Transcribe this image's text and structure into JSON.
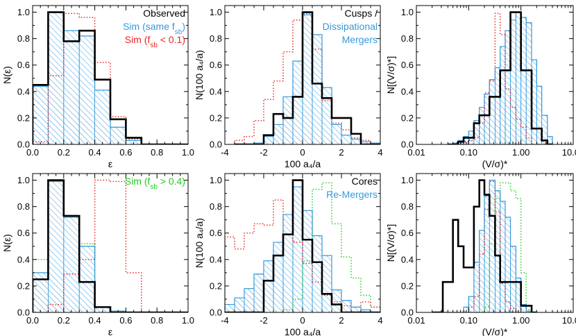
{
  "colors": {
    "observed": "#000000",
    "sim_same": "#3399dd",
    "sim_low": "#ee2222",
    "sim_high": "#22cc22"
  },
  "chart_data": [
    {
      "type": "histogram",
      "row": 0,
      "col": 0,
      "xlabel": "ε",
      "ylabel": "N(ε)",
      "xlim": [
        0.0,
        1.0
      ],
      "ylim": [
        0.0,
        1.05
      ],
      "xscale": "linear",
      "xticks": [
        "0.0",
        "0.2",
        "0.4",
        "0.6",
        "0.8",
        "1.0"
      ],
      "xtick_values": [
        0.0,
        0.2,
        0.4,
        0.6,
        0.8,
        1.0
      ],
      "yticks": [
        "0.0",
        "0.2",
        "0.4",
        "0.6",
        "0.8",
        "1.0"
      ],
      "ytick_values": [
        0.0,
        0.2,
        0.4,
        0.6,
        0.8,
        1.0
      ],
      "bin_edges": [
        0.0,
        0.1,
        0.2,
        0.3,
        0.4,
        0.5,
        0.6,
        0.7,
        0.8,
        0.9,
        1.0
      ],
      "legend": [
        {
          "text": "Observed",
          "color_key": "observed"
        },
        {
          "text": "Sim (same f",
          "sub": "sb",
          "after": ")",
          "color_key": "sim_same"
        },
        {
          "text": "Sim (f",
          "sub": "sb",
          "after": " < 0.1)",
          "color_key": "sim_low"
        }
      ],
      "series": [
        {
          "name": "Observed",
          "style": "solid-black",
          "values": [
            0.45,
            1.0,
            0.78,
            0.86,
            0.49,
            0.19,
            0.05,
            0.0,
            0.0,
            0.0
          ]
        },
        {
          "name": "Sim (same f_sb)",
          "style": "hatched-blue",
          "values": [
            0.44,
            1.0,
            0.86,
            0.82,
            0.41,
            0.13,
            0.03,
            0.0,
            0.0,
            0.0
          ]
        },
        {
          "name": "Sim (f_sb < 0.1)",
          "style": "dotted-red",
          "values": [
            0.02,
            0.52,
            0.99,
            0.96,
            0.62,
            0.21,
            0.04,
            0.0,
            0.0,
            0.0
          ]
        }
      ]
    },
    {
      "type": "histogram",
      "row": 0,
      "col": 1,
      "xlabel": "100 a₄/a",
      "ylabel": "N(100 a₄/a)",
      "xlim": [
        -4,
        4
      ],
      "ylim": [
        0.0,
        1.05
      ],
      "xscale": "linear",
      "xticks": [
        "-4",
        "-2",
        "0",
        "2",
        "4"
      ],
      "xtick_values": [
        -4,
        -2,
        0,
        2,
        4
      ],
      "yticks": [
        "0.0",
        "0.2",
        "0.4",
        "0.6",
        "0.8",
        "1.0"
      ],
      "ytick_values": [
        0.0,
        0.2,
        0.4,
        0.6,
        0.8,
        1.0
      ],
      "bin_edges": [
        -3.5,
        -3.0,
        -2.5,
        -2.0,
        -1.5,
        -1.0,
        -0.5,
        0.0,
        0.5,
        1.0,
        1.5,
        2.0,
        2.5,
        3.0,
        3.5,
        4.0
      ],
      "legend": [
        {
          "text": "Cusps /",
          "color_key": "observed"
        },
        {
          "text": "Dissipational",
          "color_key": "sim_same"
        },
        {
          "text": "Mergers",
          "color_key": "sim_same"
        }
      ],
      "series": [
        {
          "name": "Observed",
          "style": "solid-black",
          "values": [
            0.0,
            0.0,
            0.0,
            0.07,
            0.23,
            0.2,
            0.36,
            1.0,
            0.46,
            0.35,
            0.2,
            0.2,
            0.08,
            0.0,
            0.0
          ]
        },
        {
          "name": "Sim (same f_sb)",
          "style": "hatched-blue",
          "values": [
            0.0,
            0.0,
            0.01,
            0.06,
            0.15,
            0.36,
            0.63,
            0.98,
            0.83,
            0.43,
            0.15,
            0.07,
            0.04,
            0.02,
            0.01
          ]
        },
        {
          "name": "Sim (f_sb < 0.1)",
          "style": "dotted-red",
          "values": [
            0.03,
            0.06,
            0.18,
            0.34,
            0.48,
            0.7,
            0.94,
            0.99,
            0.72,
            0.33,
            0.16,
            0.11,
            0.05,
            0.03,
            0.01
          ]
        }
      ]
    },
    {
      "type": "histogram",
      "row": 0,
      "col": 2,
      "xlabel": "(V/σ)*",
      "ylabel": "N[(V/σ)*]",
      "xlim": [
        0.01,
        10.0
      ],
      "ylim": [
        0.0,
        1.05
      ],
      "xscale": "log",
      "xticks": [
        "0.01",
        "0.10",
        "1.00",
        "10.00"
      ],
      "xtick_values": [
        0.01,
        0.1,
        1.0,
        10.0
      ],
      "yticks": [
        "0.0",
        "0.2",
        "0.4",
        "0.6",
        "0.8",
        "1.0"
      ],
      "ytick_values": [
        0.0,
        0.2,
        0.4,
        0.6,
        0.8,
        1.0
      ],
      "bin_edges": [
        0.04,
        0.05,
        0.063,
        0.08,
        0.1,
        0.126,
        0.16,
        0.2,
        0.25,
        0.32,
        0.4,
        0.5,
        0.63,
        0.8,
        1.0,
        1.26,
        1.6,
        2.0,
        2.5,
        3.2,
        4.0
      ],
      "legend": [],
      "series": [
        {
          "name": "Observed",
          "style": "solid-black",
          "values": [
            0.0,
            0.0,
            0.02,
            0.05,
            0.05,
            0.16,
            0.22,
            0.22,
            0.36,
            0.36,
            0.56,
            0.56,
            1.0,
            1.0,
            0.56,
            0.56,
            0.12,
            0.12,
            0.03,
            0.0
          ]
        },
        {
          "name": "Sim (same f_sb)",
          "style": "hatched-blue",
          "values": [
            0.0,
            0.01,
            0.03,
            0.06,
            0.1,
            0.18,
            0.28,
            0.38,
            0.49,
            0.58,
            0.74,
            0.86,
            0.94,
            1.0,
            0.96,
            0.92,
            0.64,
            0.44,
            0.22,
            0.06
          ]
        },
        {
          "name": "Sim (f_sb < 0.1)",
          "style": "dotted-red",
          "values": [
            0.0,
            0.0,
            0.01,
            0.02,
            0.03,
            0.05,
            0.16,
            0.39,
            0.48,
            0.99,
            0.83,
            0.42,
            0.28,
            0.19,
            0.13,
            0.05,
            0.0,
            0.0,
            0.0,
            0.0
          ]
        }
      ]
    },
    {
      "type": "histogram",
      "row": 1,
      "col": 0,
      "xlabel": "ε",
      "ylabel": "N(ε)",
      "xlim": [
        0.0,
        1.0
      ],
      "ylim": [
        0.0,
        1.05
      ],
      "xscale": "linear",
      "xticks": [
        "0.0",
        "0.2",
        "0.4",
        "0.6",
        "0.8",
        "1.0"
      ],
      "xtick_values": [
        0.0,
        0.2,
        0.4,
        0.6,
        0.8,
        1.0
      ],
      "yticks": [
        "0.0",
        "0.2",
        "0.4",
        "0.6",
        "0.8",
        "1.0"
      ],
      "ytick_values": [
        0.0,
        0.2,
        0.4,
        0.6,
        0.8,
        1.0
      ],
      "bin_edges": [
        0.0,
        0.1,
        0.2,
        0.3,
        0.4,
        0.5,
        0.6,
        0.7,
        0.8,
        0.9,
        1.0
      ],
      "legend": [
        {
          "text": "Sim (f",
          "sub": "sb",
          "after": " > 0.4)",
          "color_key": "sim_high"
        }
      ],
      "series": [
        {
          "name": "Observed",
          "style": "solid-black",
          "values": [
            0.25,
            1.0,
            0.73,
            0.23,
            0.04,
            0.0,
            0.0,
            0.0,
            0.0,
            0.0
          ]
        },
        {
          "name": "Sim (same f_sb)",
          "style": "hatched-blue",
          "values": [
            0.3,
            0.99,
            0.72,
            0.5,
            0.04,
            0.01,
            0.0,
            0.0,
            0.0,
            0.0
          ]
        },
        {
          "name": "Sim (f_sb < 0.1)",
          "style": "dotted-red",
          "values": [
            0.0,
            0.06,
            0.29,
            0.4,
            1.0,
            0.99,
            0.3,
            0.0,
            0.0,
            0.0
          ]
        },
        {
          "name": "Sim (f_sb > 0.4)",
          "style": "dotted-green",
          "values": [
            0.4,
            1.0,
            0.72,
            0.52,
            0.04,
            0.0,
            0.0,
            0.0,
            0.0,
            0.0
          ]
        }
      ]
    },
    {
      "type": "histogram",
      "row": 1,
      "col": 1,
      "xlabel": "100 a₄/a",
      "ylabel": "N(100 a₄/a)",
      "xlim": [
        -4,
        4
      ],
      "ylim": [
        0.0,
        1.05
      ],
      "xscale": "linear",
      "xticks": [
        "-4",
        "-2",
        "0",
        "2",
        "4"
      ],
      "xtick_values": [
        -4,
        -2,
        0,
        2,
        4
      ],
      "yticks": [
        "0.0",
        "0.2",
        "0.4",
        "0.6",
        "0.8",
        "1.0"
      ],
      "ytick_values": [
        0.0,
        0.2,
        0.4,
        0.6,
        0.8,
        1.0
      ],
      "bin_edges": [
        -4.0,
        -3.5,
        -3.0,
        -2.5,
        -2.0,
        -1.5,
        -1.0,
        -0.5,
        0.0,
        0.5,
        1.0,
        1.5,
        2.0,
        2.5,
        3.0,
        3.5,
        4.0
      ],
      "legend": [
        {
          "text": "Cores",
          "color_key": "observed"
        },
        {
          "text": "Re-Mergers",
          "color_key": "sim_same"
        }
      ],
      "series": [
        {
          "name": "Observed",
          "style": "solid-black",
          "values": [
            0.0,
            0.0,
            0.0,
            0.0,
            0.24,
            0.43,
            0.59,
            1.0,
            0.55,
            0.38,
            0.14,
            0.06,
            0.0,
            0.0,
            0.0,
            0.0
          ]
        },
        {
          "name": "Sim (same f_sb)",
          "style": "hatched-blue",
          "values": [
            0.06,
            0.11,
            0.18,
            0.29,
            0.39,
            0.53,
            0.74,
            0.95,
            0.77,
            0.58,
            0.43,
            0.17,
            0.09,
            0.04,
            0.02,
            0.0
          ]
        },
        {
          "name": "Sim (f_sb < 0.1)",
          "style": "dotted-red",
          "values": [
            0.57,
            0.48,
            0.6,
            0.67,
            0.66,
            0.85,
            0.59,
            0.53,
            0.37,
            0.23,
            0.13,
            0.08,
            0.05,
            0.04,
            0.08,
            0.04
          ]
        },
        {
          "name": "Sim (f_sb > 0.4)",
          "style": "dotted-green",
          "values": [
            0.0,
            0.0,
            0.0,
            0.0,
            0.0,
            0.0,
            0.02,
            0.1,
            0.39,
            0.93,
            0.98,
            0.67,
            0.42,
            0.26,
            0.13,
            0.04
          ]
        }
      ]
    },
    {
      "type": "histogram",
      "row": 1,
      "col": 2,
      "xlabel": "(V/σ)*",
      "ylabel": "N[(V/σ)*]",
      "xlim": [
        0.01,
        10.0
      ],
      "ylim": [
        0.0,
        1.05
      ],
      "xscale": "log",
      "xticks": [
        "0.01",
        "0.10",
        "1.00",
        "10.00"
      ],
      "xtick_values": [
        0.01,
        0.1,
        1.0,
        10.0
      ],
      "yticks": [
        "0.0",
        "0.2",
        "0.4",
        "0.6",
        "0.8",
        "1.0"
      ],
      "ytick_values": [
        0.0,
        0.2,
        0.4,
        0.6,
        0.8,
        1.0
      ],
      "bin_edges": [
        0.02,
        0.032,
        0.05,
        0.063,
        0.08,
        0.1,
        0.126,
        0.16,
        0.2,
        0.25,
        0.32,
        0.4,
        0.5,
        0.63,
        0.8,
        1.0,
        1.26,
        1.6,
        2.0
      ],
      "legend": [],
      "series": [
        {
          "name": "Observed",
          "style": "solid-black",
          "values": [
            0.0,
            0.23,
            0.7,
            0.5,
            0.34,
            0.34,
            0.8,
            1.0,
            0.89,
            0.73,
            0.43,
            0.23,
            0.23,
            0.23,
            0.23,
            0.05,
            0.05,
            0.0
          ]
        },
        {
          "name": "Sim (same f_sb)",
          "style": "hatched-blue",
          "values": [
            0.0,
            0.0,
            0.0,
            0.0,
            0.04,
            0.12,
            0.38,
            0.62,
            0.88,
            1.0,
            0.92,
            0.84,
            0.72,
            0.5,
            0.26,
            0.06,
            0.01,
            0.0
          ]
        },
        {
          "name": "Sim (f_sb < 0.1)",
          "style": "dotted-red",
          "values": [
            0.0,
            0.0,
            0.0,
            0.0,
            0.0,
            0.04,
            0.12,
            0.44,
            0.78,
            0.99,
            0.76,
            0.22,
            0.08,
            0.03,
            0.0,
            0.0,
            0.0,
            0.0
          ]
        },
        {
          "name": "Sim (f_sb > 0.4)",
          "style": "dotted-green",
          "values": [
            0.0,
            0.0,
            0.0,
            0.0,
            0.0,
            0.0,
            0.0,
            0.0,
            0.04,
            0.52,
            0.86,
            0.98,
            0.98,
            0.92,
            0.86,
            0.3,
            0.02,
            0.0
          ]
        }
      ]
    }
  ]
}
